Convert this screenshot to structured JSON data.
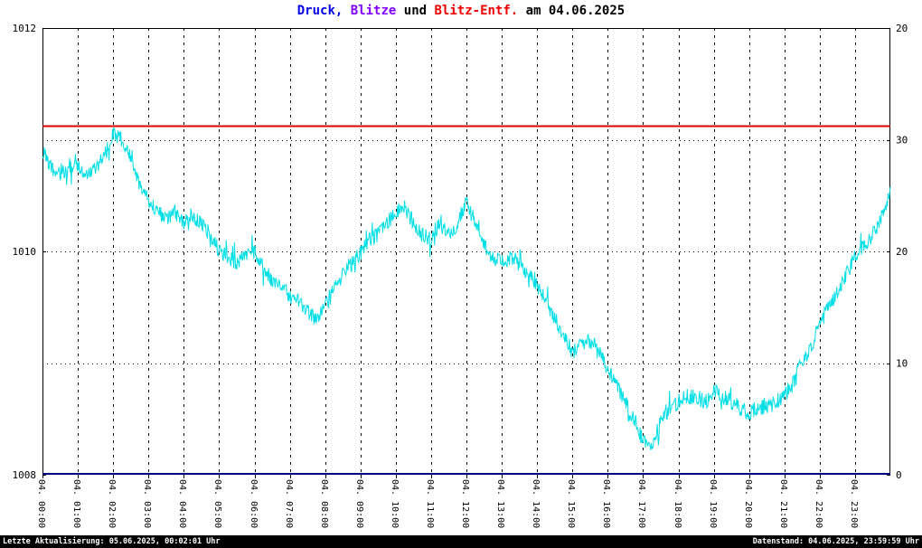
{
  "title": {
    "segments": [
      {
        "text": "Druck,",
        "color": "#0000ee"
      },
      {
        "text": " Blitze",
        "color": "#8000ff"
      },
      {
        "text": " und",
        "color": "#000000"
      },
      {
        "text": " Blitz-Entf.",
        "color": "#ee0000"
      },
      {
        "text": " am 04.06.2025",
        "color": "#000000"
      }
    ]
  },
  "footer": {
    "left": "Letzte Aktualisierung: 05.06.2025, 00:02:01 Uhr",
    "right": "Datenstand: 04.06.2025, 23:59:59 Uhr",
    "bg": "#000000",
    "fg": "#ffffff"
  },
  "chart_data": {
    "type": "line",
    "title": "Druck, Blitze und Blitz-Entf. am 04.06.2025",
    "x": {
      "min": 0,
      "max": 24,
      "tick_hours": [
        0,
        1,
        2,
        3,
        4,
        5,
        6,
        7,
        8,
        9,
        10,
        11,
        12,
        13,
        14,
        15,
        16,
        17,
        18,
        19,
        20,
        21,
        22,
        23
      ],
      "tick_labels": [
        "04. 00:00",
        "04. 01:00",
        "04. 02:00",
        "04. 03:00",
        "04. 04:00",
        "04. 05:00",
        "04. 06:00",
        "04. 07:00",
        "04. 08:00",
        "04. 09:00",
        "04. 10:00",
        "04. 11:00",
        "04. 12:00",
        "04. 13:00",
        "04. 14:00",
        "04. 15:00",
        "04. 16:00",
        "04. 17:00",
        "04. 18:00",
        "04. 19:00",
        "04. 20:00",
        "04. 21:00",
        "04. 22:00",
        "04. 23:00"
      ]
    },
    "y_left": {
      "min": 1008,
      "max": 1012,
      "tick_values": [
        1012,
        1010,
        1008
      ],
      "tick_labels": [
        "1012",
        "1010",
        "1008"
      ]
    },
    "y_right": {
      "min": 0,
      "max": 40,
      "tick_values": [
        30,
        20,
        10,
        0
      ],
      "tick_labels": [
        "30",
        "20",
        "10",
        "0"
      ],
      "extra_top_label": "20"
    },
    "grid": {
      "vertical_hours": [
        1,
        2,
        3,
        4,
        5,
        6,
        7,
        8,
        9,
        10,
        11,
        12,
        13,
        14,
        15,
        16,
        17,
        18,
        19,
        20,
        21,
        22,
        23
      ],
      "horizontal_right_values": [
        30,
        20,
        10
      ]
    },
    "series": [
      {
        "name": "Druck",
        "axis": "left",
        "style": "noisy-line",
        "color": "#00dfe6",
        "start_hour": 0,
        "step_hours": 0.25,
        "samples_per_hour": 60,
        "noise_amplitude": 0.07,
        "noise_seed": 20250604,
        "values": [
          1010.9,
          1010.75,
          1010.7,
          1010.75,
          1010.75,
          1010.7,
          1010.75,
          1010.85,
          1011.05,
          1011.0,
          1010.85,
          1010.6,
          1010.45,
          1010.35,
          1010.3,
          1010.35,
          1010.25,
          1010.3,
          1010.25,
          1010.15,
          1010.0,
          1009.95,
          1009.9,
          1009.95,
          1010.0,
          1009.85,
          1009.75,
          1009.7,
          1009.6,
          1009.55,
          1009.45,
          1009.4,
          1009.5,
          1009.65,
          1009.8,
          1009.9,
          1010.0,
          1010.1,
          1010.15,
          1010.25,
          1010.35,
          1010.4,
          1010.25,
          1010.15,
          1010.1,
          1010.25,
          1010.15,
          1010.25,
          1010.45,
          1010.25,
          1010.05,
          1009.95,
          1009.9,
          1009.95,
          1009.9,
          1009.8,
          1009.7,
          1009.55,
          1009.4,
          1009.25,
          1009.1,
          1009.15,
          1009.2,
          1009.1,
          1008.95,
          1008.8,
          1008.65,
          1008.5,
          1008.3,
          1008.25,
          1008.5,
          1008.6,
          1008.65,
          1008.7,
          1008.7,
          1008.65,
          1008.75,
          1008.7,
          1008.65,
          1008.6,
          1008.55,
          1008.6,
          1008.6,
          1008.65,
          1008.7,
          1008.85,
          1009.0,
          1009.15,
          1009.35,
          1009.5,
          1009.65,
          1009.8,
          1009.95,
          1010.05,
          1010.15,
          1010.3,
          1010.55
        ]
      },
      {
        "name": "Blitz-Entf.",
        "axis": "right",
        "style": "hline",
        "color": "#dd0000",
        "value": 31.2,
        "width": 2
      },
      {
        "name": "Blitze",
        "axis": "right",
        "style": "hline",
        "color": "#000080",
        "value": 0,
        "width": 2
      }
    ]
  }
}
